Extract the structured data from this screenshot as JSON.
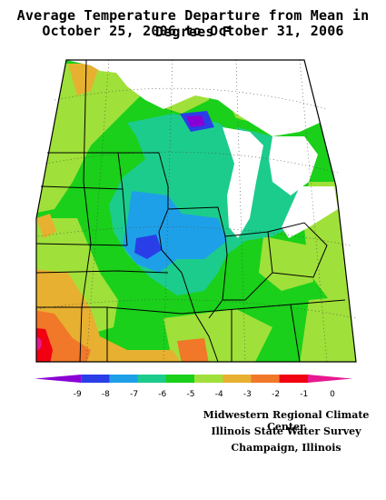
{
  "title_line1": "Average Temperature Departure from Mean in Degrees F",
  "title_line2": "October 25, 2006 to October 31, 2006",
  "legend": {
    "labels": [
      "-9",
      "-8",
      "-7",
      "-6",
      "-5",
      "-4",
      "-3",
      "-2",
      "-1",
      "0"
    ],
    "colors": [
      "#8a00d4",
      "#2a3ee8",
      "#1ea0e8",
      "#1ccc8c",
      "#1ad01a",
      "#a0e03a",
      "#e8b030",
      "#f07828",
      "#f00010",
      "#e81890"
    ]
  },
  "credits": [
    "Midwestern Regional Climate Center",
    "Illinois State Water Survey",
    "Champaign, Illinois"
  ]
}
